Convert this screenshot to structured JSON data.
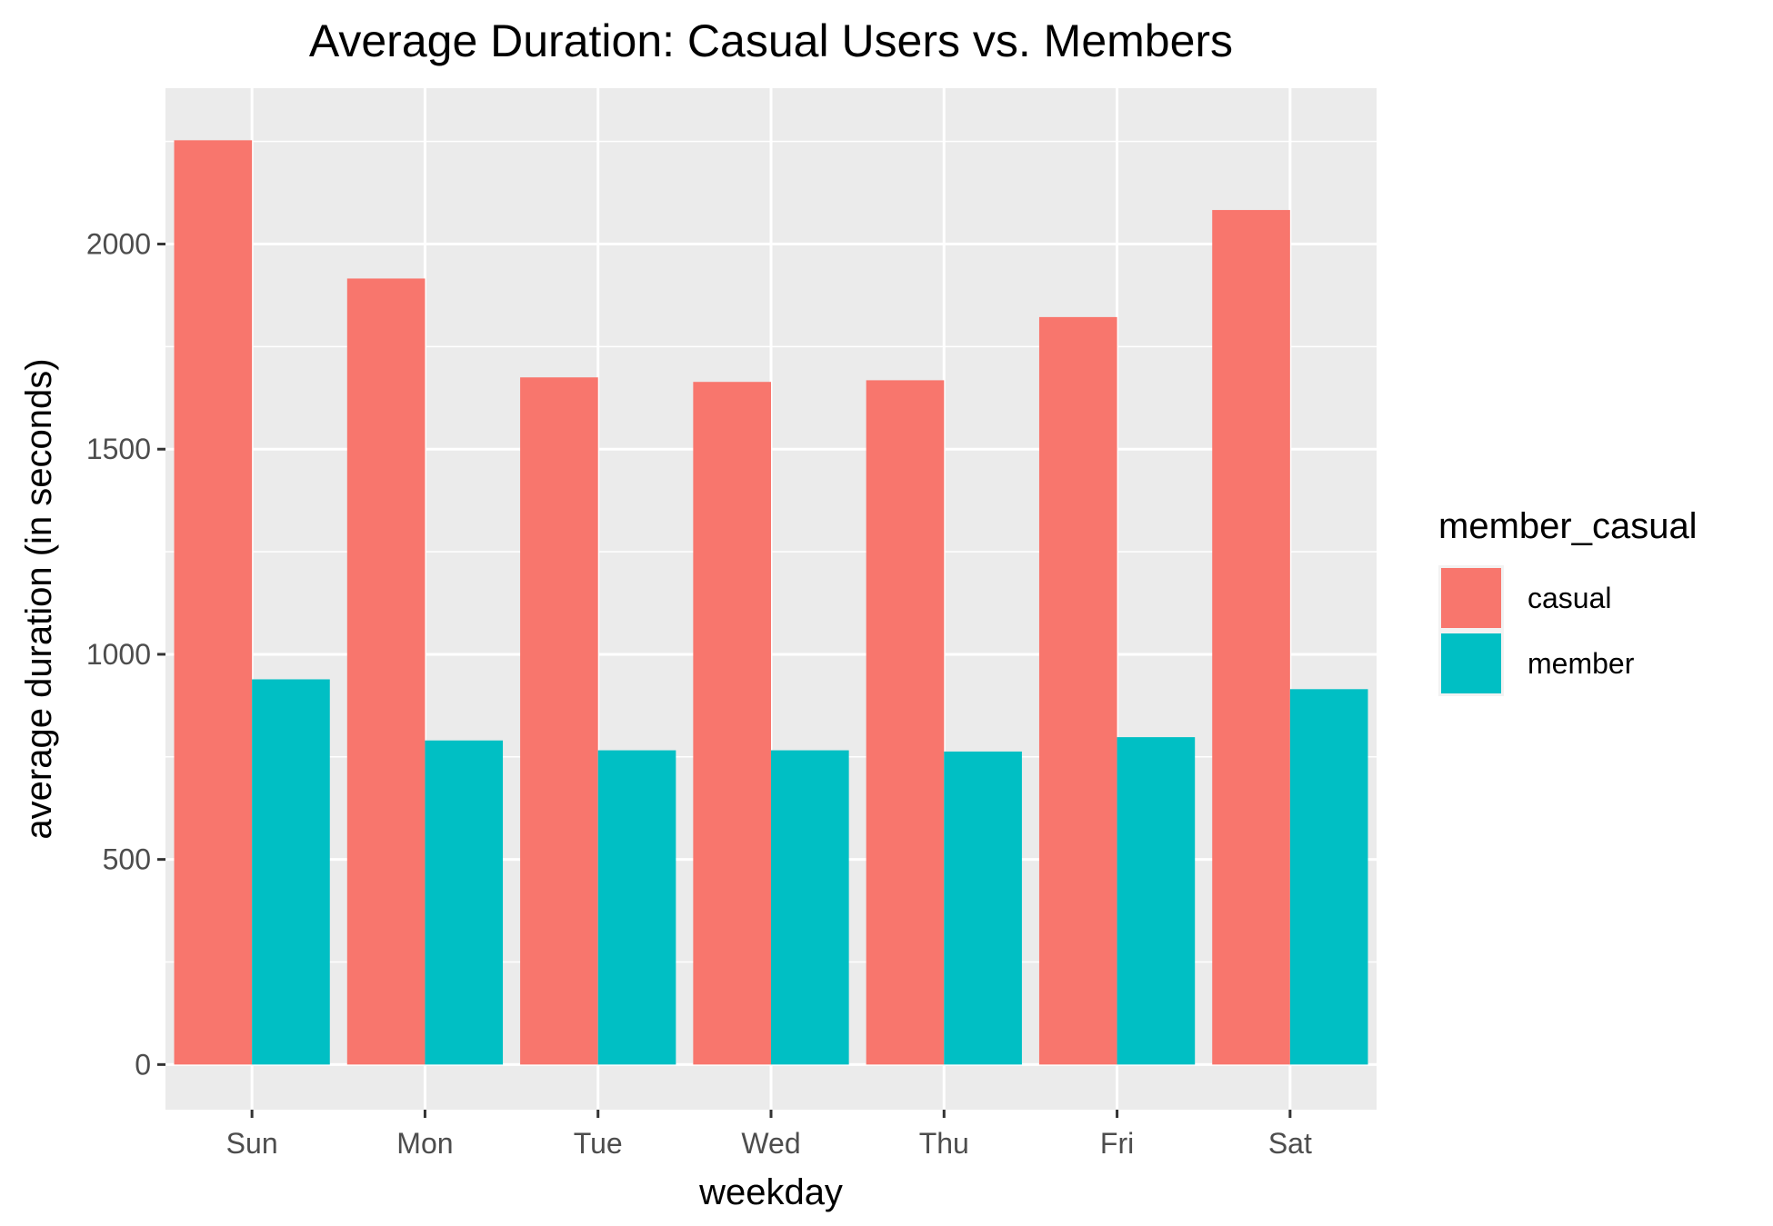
{
  "chart_data": {
    "type": "bar",
    "title": "Average Duration: Casual Users vs. Members",
    "xlabel": "weekday",
    "ylabel": "average duration (in seconds)",
    "categories": [
      "Sun",
      "Mon",
      "Tue",
      "Wed",
      "Thu",
      "Fri",
      "Sat"
    ],
    "series": [
      {
        "name": "casual",
        "color": "#F8766D",
        "values": [
          2253,
          1916,
          1675,
          1664,
          1668,
          1822,
          2083
        ]
      },
      {
        "name": "member",
        "color": "#00BFC4",
        "values": [
          939,
          790,
          766,
          766,
          763,
          798,
          915
        ]
      }
    ],
    "ylim": [
      -110,
      2380
    ],
    "yticks": [
      0,
      500,
      1000,
      1500,
      2000
    ],
    "ytick_labels": [
      "0",
      "500",
      "1000",
      "1500",
      "2000"
    ],
    "legend": {
      "title": "member_casual",
      "position": "right"
    },
    "grid": true,
    "panel_background": "#EBEBEB",
    "grid_color": "#FFFFFF"
  }
}
